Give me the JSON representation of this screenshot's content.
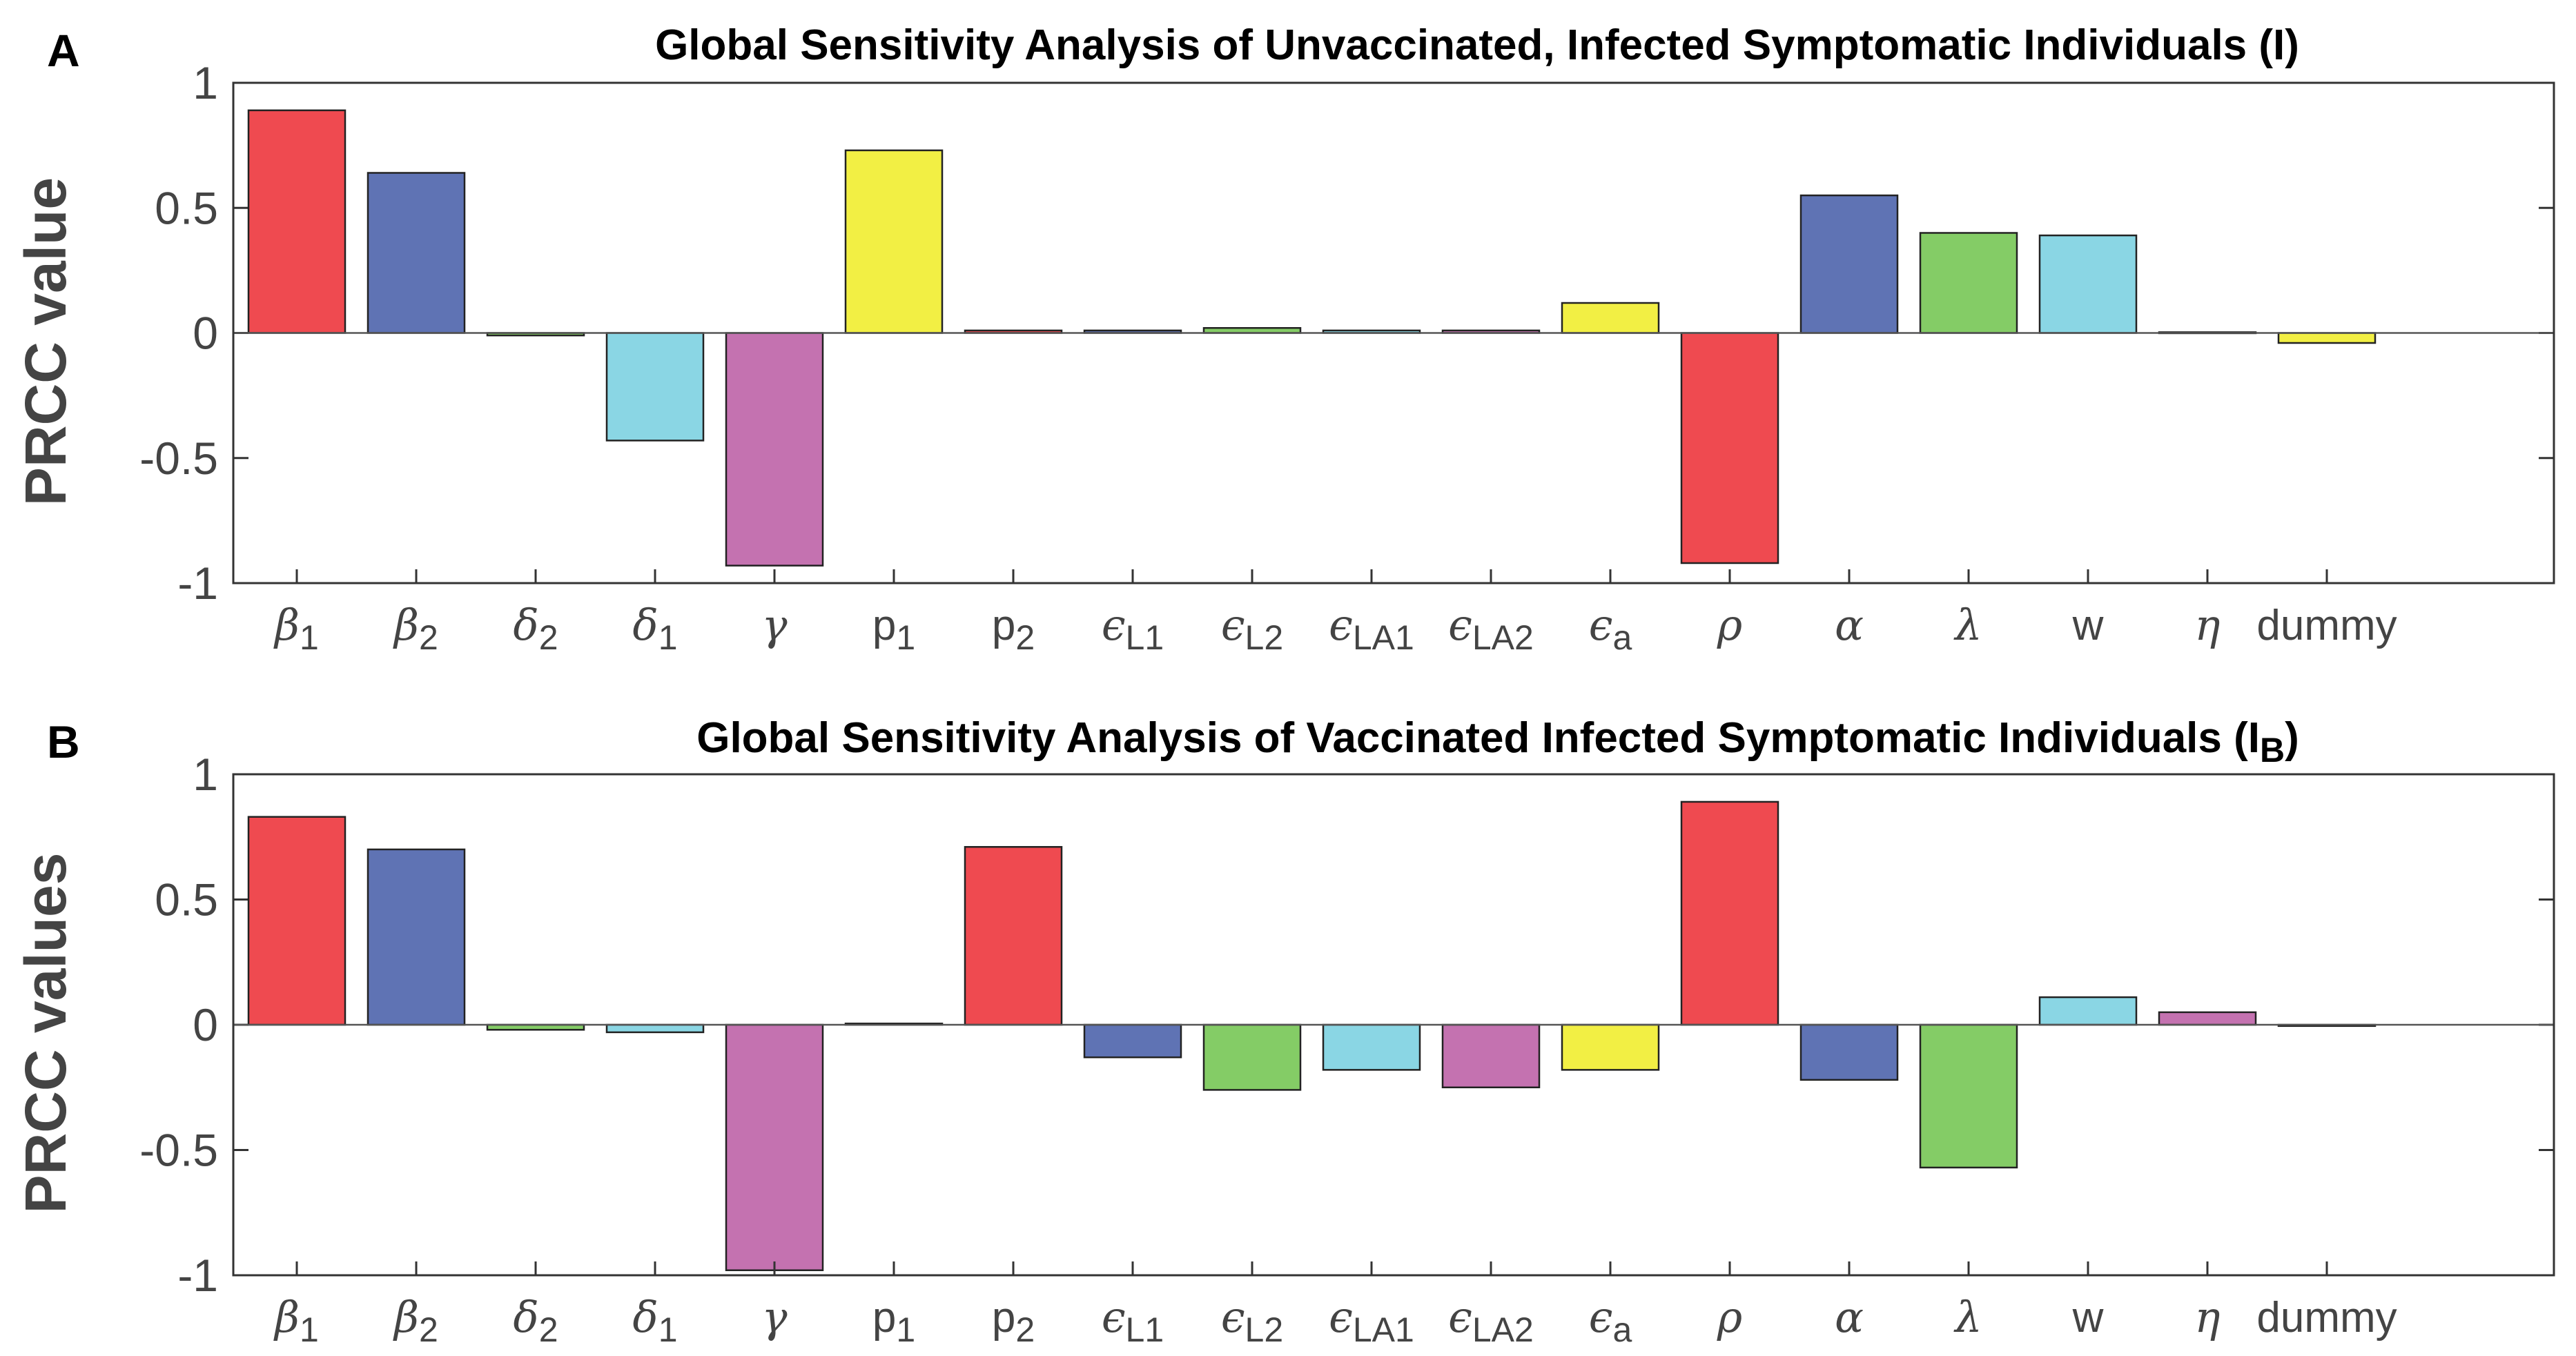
{
  "chart_data": [
    {
      "type": "bar",
      "panel_label": "A",
      "title": "Global Sensitivity Analysis of Unvaccinated, Infected Symptomatic Individuals (I)",
      "ylabel": "PRCC value",
      "xlabel": "",
      "ylim": [
        -1,
        1
      ],
      "yticks": [
        "1",
        "0.5",
        "0",
        "-0.5",
        "-1"
      ],
      "categories": [
        {
          "base": "β",
          "sub": "1"
        },
        {
          "base": "β",
          "sub": "2"
        },
        {
          "base": "δ",
          "sub": "2"
        },
        {
          "base": "δ",
          "sub": "1"
        },
        {
          "base": "γ",
          "sub": ""
        },
        {
          "base": "p",
          "sub": "1"
        },
        {
          "base": "p",
          "sub": "2"
        },
        {
          "base": "ϵ",
          "sub": "L1"
        },
        {
          "base": "ϵ",
          "sub": "L2"
        },
        {
          "base": "ϵ",
          "sub": "LA1"
        },
        {
          "base": "ϵ",
          "sub": "LA2"
        },
        {
          "base": "ϵ",
          "sub": "a"
        },
        {
          "base": "ρ",
          "sub": ""
        },
        {
          "base": "α",
          "sub": ""
        },
        {
          "base": "λ",
          "sub": ""
        },
        {
          "base": "w",
          "sub": ""
        },
        {
          "base": "η",
          "sub": ""
        },
        {
          "base": "dummy",
          "sub": ""
        }
      ],
      "values": [
        0.89,
        0.64,
        -0.01,
        -0.43,
        -0.93,
        0.73,
        0.01,
        0.01,
        0.02,
        0.01,
        0.01,
        0.12,
        -0.92,
        0.55,
        0.4,
        0.39,
        0.003,
        -0.04
      ],
      "colors": [
        "#ef4a50",
        "#5f73b4",
        "#84cc66",
        "#8ad6e4",
        "#c472b0",
        "#f2ef44",
        "#ef4a50",
        "#5f73b4",
        "#84cc66",
        "#8ad6e4",
        "#c472b0",
        "#f2ef44",
        "#ef4a50",
        "#5f73b4",
        "#84cc66",
        "#8ad6e4",
        "#c472b0",
        "#f2ef44"
      ]
    },
    {
      "type": "bar",
      "panel_label": "B",
      "title": "Global Sensitivity Analysis of Vaccinated Infected Symptomatic Individuals (I",
      "title_sub": "B",
      "title_end": ")",
      "ylabel": "PRCC values",
      "xlabel": "",
      "ylim": [
        -1,
        1
      ],
      "yticks": [
        "1",
        "0.5",
        "0",
        "-0.5",
        "-1"
      ],
      "categories": [
        {
          "base": "β",
          "sub": "1"
        },
        {
          "base": "β",
          "sub": "2"
        },
        {
          "base": "δ",
          "sub": "2"
        },
        {
          "base": "δ",
          "sub": "1"
        },
        {
          "base": "γ",
          "sub": ""
        },
        {
          "base": "p",
          "sub": "1"
        },
        {
          "base": "p",
          "sub": "2"
        },
        {
          "base": "ϵ",
          "sub": "L1"
        },
        {
          "base": "ϵ",
          "sub": "L2"
        },
        {
          "base": "ϵ",
          "sub": "LA1"
        },
        {
          "base": "ϵ",
          "sub": "LA2"
        },
        {
          "base": "ϵ",
          "sub": "a"
        },
        {
          "base": "ρ",
          "sub": ""
        },
        {
          "base": "α",
          "sub": ""
        },
        {
          "base": "λ",
          "sub": ""
        },
        {
          "base": "w",
          "sub": ""
        },
        {
          "base": "η",
          "sub": ""
        },
        {
          "base": "dummy",
          "sub": ""
        }
      ],
      "values": [
        0.83,
        0.7,
        -0.02,
        -0.03,
        -0.98,
        0.005,
        0.71,
        -0.13,
        -0.26,
        -0.18,
        -0.25,
        -0.18,
        0.89,
        -0.22,
        -0.57,
        0.11,
        0.05,
        -0.005
      ],
      "colors": [
        "#ef4a50",
        "#5f73b4",
        "#84cc66",
        "#8ad6e4",
        "#c472b0",
        "#f2ef44",
        "#ef4a50",
        "#5f73b4",
        "#84cc66",
        "#8ad6e4",
        "#c472b0",
        "#f2ef44",
        "#ef4a50",
        "#5f73b4",
        "#84cc66",
        "#8ad6e4",
        "#c472b0",
        "#f2ef44"
      ]
    }
  ]
}
